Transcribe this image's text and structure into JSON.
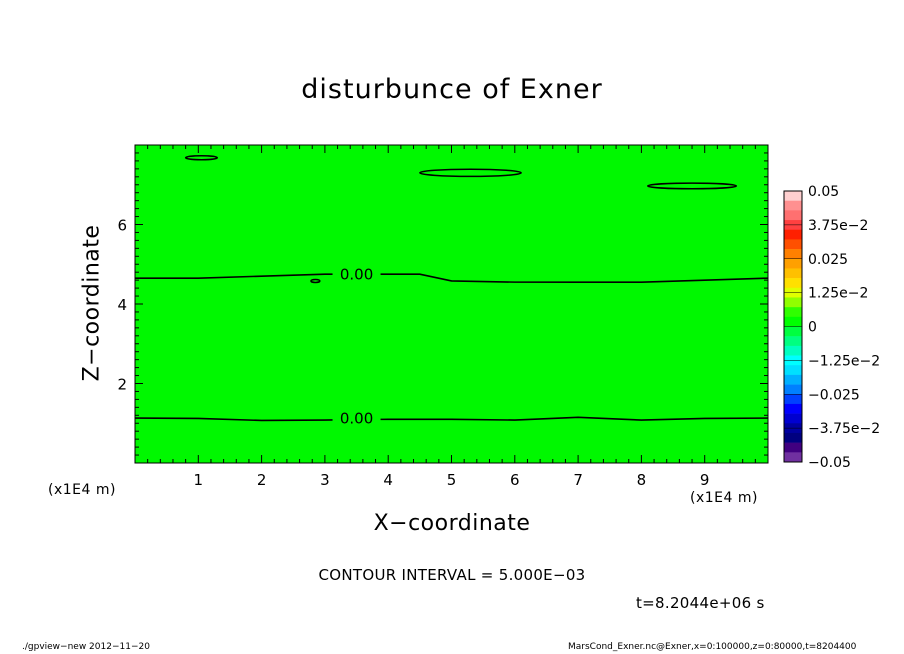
{
  "chart_data": {
    "type": "contour",
    "title": "disturbunce of Exner",
    "xlabel": "X−coordinate",
    "ylabel": "Z−coordinate",
    "x_unit": "(x1E4 m)",
    "xlim": [
      0,
      10
    ],
    "ylim": [
      0,
      8
    ],
    "x_ticks": [
      1,
      2,
      3,
      4,
      5,
      6,
      7,
      8,
      9
    ],
    "y_ticks": [
      2,
      4,
      6
    ],
    "contour_interval_text": "CONTOUR INTERVAL = 5.000E−03",
    "time_label": "t=8.2044e+06 s",
    "contour_lines": [
      {
        "label": "0.00",
        "label_x": 3.5,
        "label_y": 4.74,
        "points": [
          [
            0,
            4.65
          ],
          [
            1,
            4.65
          ],
          [
            2,
            4.7
          ],
          [
            3,
            4.75
          ],
          [
            4.5,
            4.75
          ],
          [
            5,
            4.58
          ],
          [
            6,
            4.55
          ],
          [
            7,
            4.55
          ],
          [
            8,
            4.55
          ],
          [
            9,
            4.6
          ],
          [
            10,
            4.65
          ]
        ]
      },
      {
        "label": "0.00",
        "label_x": 3.5,
        "label_y": 1.12,
        "points": [
          [
            0,
            1.13
          ],
          [
            1,
            1.12
          ],
          [
            2,
            1.07
          ],
          [
            3,
            1.08
          ],
          [
            4,
            1.1
          ],
          [
            5,
            1.1
          ],
          [
            6,
            1.08
          ],
          [
            7,
            1.15
          ],
          [
            8,
            1.08
          ],
          [
            9,
            1.12
          ],
          [
            10,
            1.13
          ]
        ]
      }
    ],
    "closed_contours": [
      {
        "cx": 1.05,
        "cy": 7.68,
        "rx": 0.25,
        "ry": 0.05
      },
      {
        "cx": 5.3,
        "cy": 7.3,
        "rx": 0.8,
        "ry": 0.09
      },
      {
        "cx": 8.8,
        "cy": 6.97,
        "rx": 0.7,
        "ry": 0.07
      },
      {
        "cx": 2.85,
        "cy": 4.58,
        "rx": 0.07,
        "ry": 0.02
      }
    ],
    "fill_color": "#00f800",
    "colorbar": {
      "min": -0.05,
      "max": 0.05,
      "labels": [
        "0.05",
        "3.75e−2",
        "0.025",
        "1.25e−2",
        "0",
        "−1.25e−2",
        "−0.025",
        "−3.75e−2",
        "−0.05"
      ],
      "levels_top_to_bottom": [
        "#ffd0d0",
        "#ff9090",
        "#ff7070",
        "#ff4040",
        "#ff2000",
        "#ff5000",
        "#ff8000",
        "#ffa000",
        "#ffc000",
        "#ffe000",
        "#e0ff00",
        "#90ff00",
        "#30ff00",
        "#00ff00",
        "#00ff40",
        "#00ff80",
        "#00ffc0",
        "#00ffff",
        "#00e0ff",
        "#00b0ff",
        "#0080ff",
        "#0040ff",
        "#0000ff",
        "#0000d0",
        "#0000a0",
        "#000080",
        "#400080",
        "#7030a0"
      ]
    }
  },
  "footer": {
    "left": "./gpview−new  2012−11−20",
    "right": "MarsCond_Exner.nc@Exner,x=0:100000,z=0:80000,t=8204400"
  }
}
